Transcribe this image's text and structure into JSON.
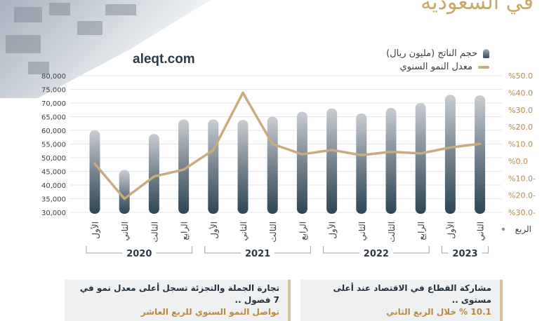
{
  "header": {
    "title": "في السعودية",
    "site": "aleqt.com"
  },
  "legend": {
    "bars": "حجم الناتج (مليون ريال)",
    "line": "معدل النمو السنوي"
  },
  "colors": {
    "accent": "#c8ab7e",
    "bar_top": "#c9cdd2",
    "bar_bottom": "#2d4656"
  },
  "chart_data": {
    "type": "bar",
    "x_axis_title": "الربع",
    "categories": [
      "الأول",
      "الثاني",
      "الثالث",
      "الرابع",
      "الأول",
      "الثاني",
      "الثالث",
      "الرابع",
      "الأول",
      "الثاني",
      "الثالث",
      "الرابع",
      "الأول",
      "الثاني"
    ],
    "years": [
      {
        "label": "2020",
        "count": 4
      },
      {
        "label": "2021",
        "count": 4
      },
      {
        "label": "2022",
        "count": 4
      },
      {
        "label": "2023",
        "count": 2
      }
    ],
    "series": [
      {
        "type": "bar",
        "values": [
          60000,
          45500,
          58700,
          64000,
          64000,
          63800,
          65000,
          66800,
          68000,
          66200,
          68200,
          70000,
          73000,
          72800
        ]
      },
      {
        "type": "line",
        "axis": "right",
        "values": [
          -1.5,
          -22.0,
          -9.0,
          -5.0,
          6.5,
          40.0,
          10.0,
          4.0,
          6.5,
          3.5,
          5.5,
          4.5,
          8.0,
          10.1
        ]
      }
    ],
    "y_left": {
      "min": 30000,
      "max": 80000,
      "step": 5000,
      "ticks": [
        "30,000",
        "35,000",
        "40,000",
        "45,000",
        "50,000",
        "55,000",
        "60,000",
        "65,000",
        "70,000",
        "75,000",
        "80,000"
      ]
    },
    "y_right": {
      "min": -30,
      "max": 50,
      "step": 10,
      "ticks": [
        "%30.0-",
        "%20.0-",
        "%10.0-",
        "%0.0",
        "%10.0",
        "%20.0",
        "%30.0",
        "%40.0",
        "%50.0"
      ]
    }
  },
  "notes": [
    {
      "line1": "مشاركة القطاع في الاقتصاد عند أعلى مستوى ..",
      "line2": "10.1 % خلال الربع الثاني"
    },
    {
      "line1": "تجارة الجملة والتجزئة تسجل أعلى معدل نمو في 7 فصول ..",
      "line2": "تواصل النمو السنوي للربع العاشر"
    }
  ]
}
